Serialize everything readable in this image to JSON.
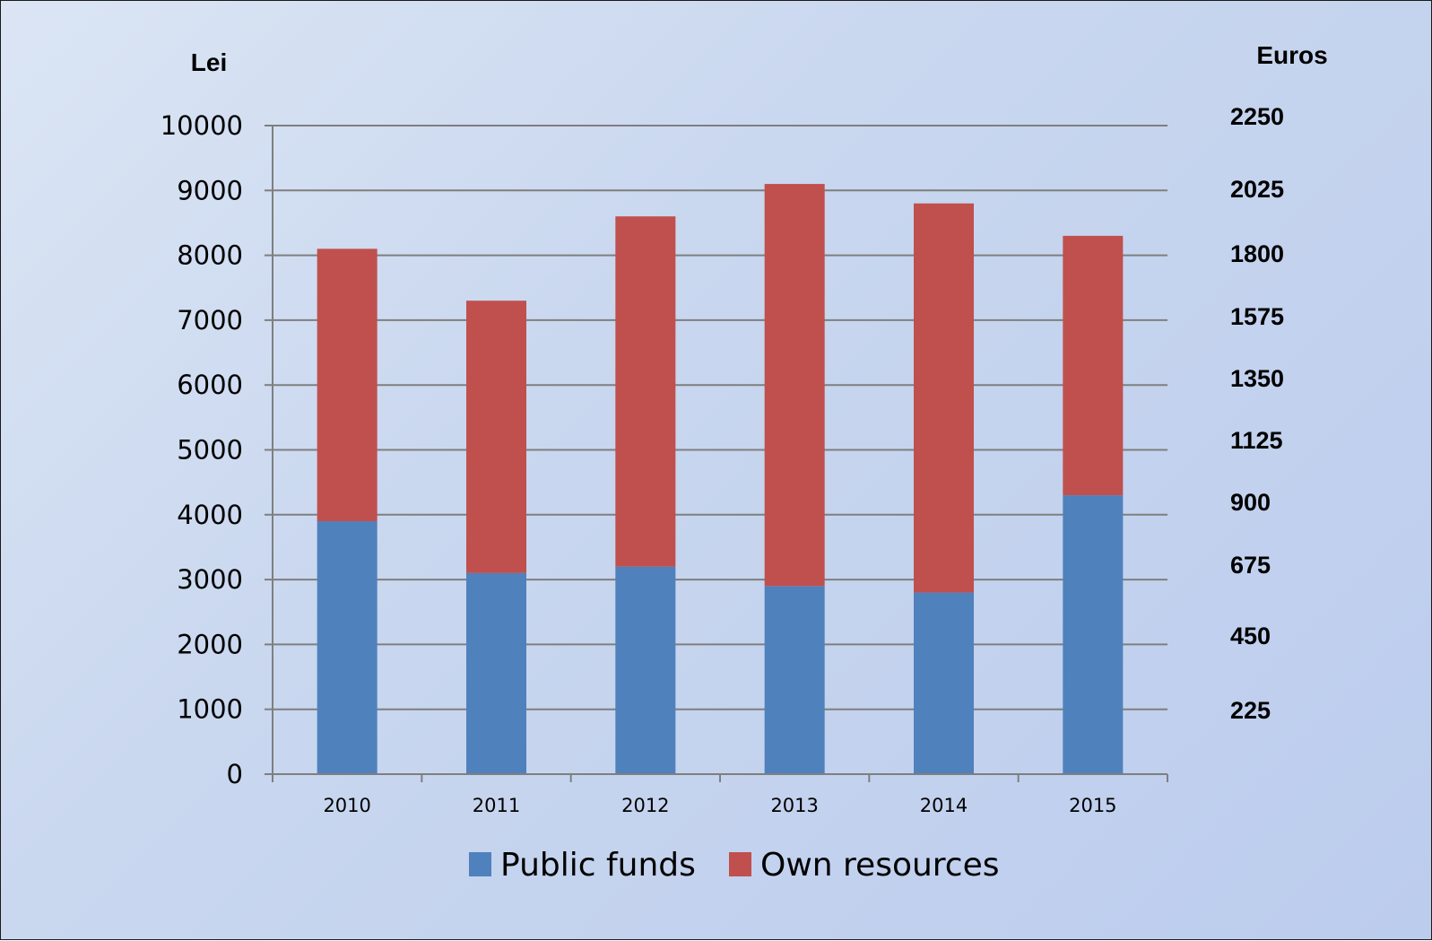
{
  "chart_data": {
    "type": "bar",
    "stacked": true,
    "categories": [
      "2010",
      "2011",
      "2012",
      "2013",
      "2014",
      "2015"
    ],
    "series": [
      {
        "name": "Public funds",
        "color": "#4f81bd",
        "values": [
          3900,
          3100,
          3200,
          2900,
          2800,
          4300
        ]
      },
      {
        "name": "Own resources",
        "color": "#c0504d",
        "values": [
          4200,
          4200,
          5400,
          6200,
          6000,
          4000
        ]
      }
    ],
    "ylabel_left": "Lei",
    "ylabel_right": "Euros",
    "ylim": [
      0,
      10000
    ],
    "left_ticks": [
      "0",
      "1000",
      "2000",
      "3000",
      "4000",
      "5000",
      "6000",
      "7000",
      "8000",
      "9000",
      "10000"
    ],
    "right_ticks": [
      "225",
      "450",
      "675",
      "900",
      "1125",
      "1350",
      "1575",
      "1800",
      "2025",
      "2250"
    ],
    "grid": true,
    "legend_position": "bottom"
  }
}
